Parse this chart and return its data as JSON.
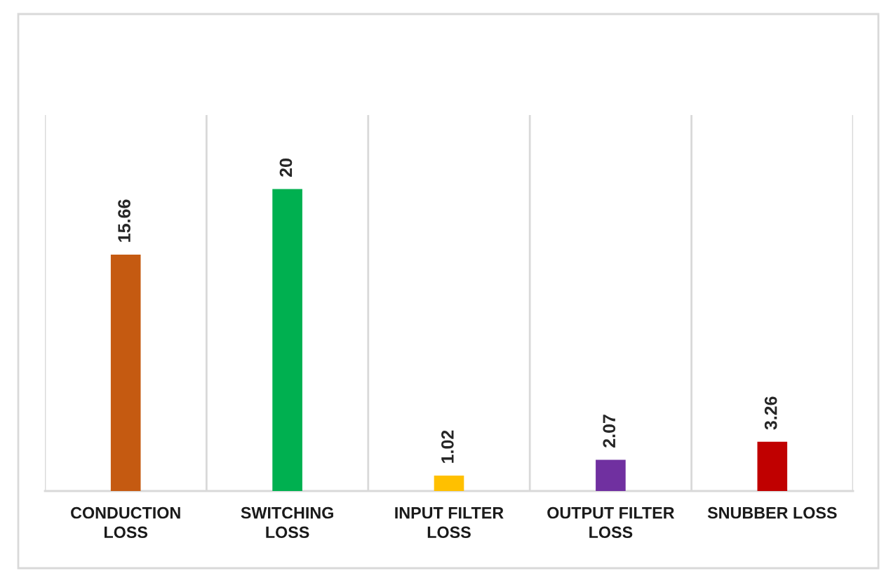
{
  "chart_data": {
    "type": "bar",
    "categories": [
      "CONDUCTION LOSS",
      "SWITCHING LOSS",
      "INPUT FILTER LOSS",
      "OUTPUT FILTER LOSS",
      "SNUBBER LOSS"
    ],
    "values": [
      15.66,
      20,
      1.02,
      2.07,
      3.26
    ],
    "colors": [
      "#c55a11",
      "#00b050",
      "#ffc000",
      "#7030a0",
      "#c00000"
    ],
    "data_labels": true,
    "grid": "x",
    "legend": false
  }
}
